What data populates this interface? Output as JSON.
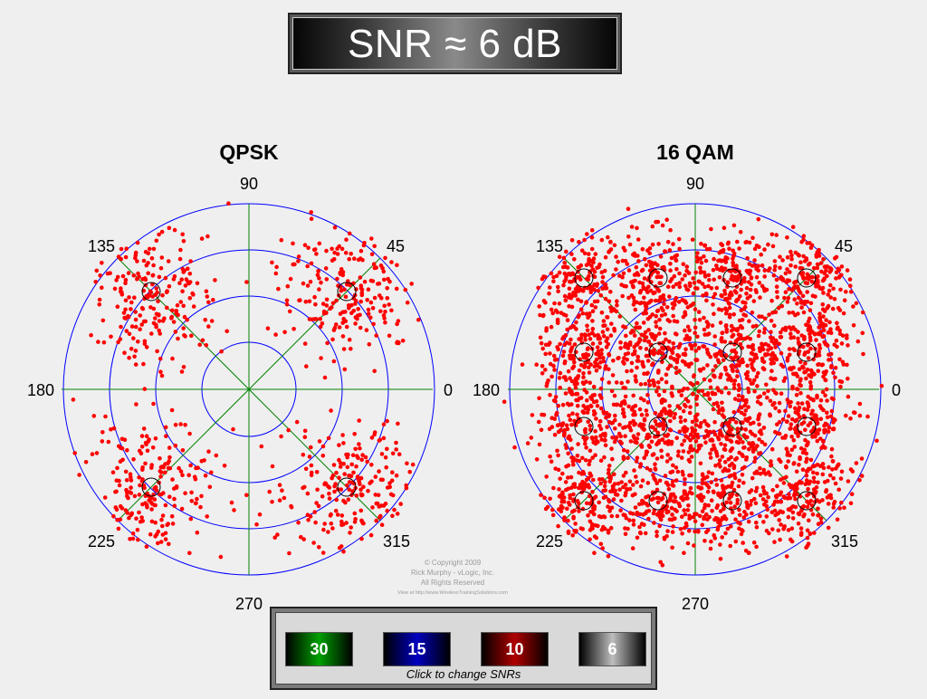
{
  "title": "SNR  ≈ 6 dB",
  "plots": [
    {
      "id": "qpsk",
      "title": "QPSK",
      "constellation": [
        [
          1,
          1
        ],
        [
          -1,
          1
        ],
        [
          -1,
          -1
        ],
        [
          1,
          -1
        ]
      ]
    },
    {
      "id": "qam16",
      "title": "16 QAM",
      "constellation": [
        [
          -3,
          3
        ],
        [
          -1,
          3
        ],
        [
          1,
          3
        ],
        [
          3,
          3
        ],
        [
          -3,
          1
        ],
        [
          -1,
          1
        ],
        [
          1,
          1
        ],
        [
          3,
          1
        ],
        [
          -3,
          -1
        ],
        [
          -1,
          -1
        ],
        [
          1,
          -1
        ],
        [
          3,
          -1
        ],
        [
          -3,
          -3
        ],
        [
          -1,
          -3
        ],
        [
          1,
          -3
        ],
        [
          3,
          -3
        ]
      ]
    }
  ],
  "axis_labels": {
    "a0": "0",
    "a45": "45",
    "a90": "90",
    "a135": "135",
    "a180": "180",
    "a225": "225",
    "a270": "270",
    "a315": "315"
  },
  "copyright": [
    "© Copyright 2009",
    "Rick Murphy - vLogic, Inc.",
    "All Rights Reserved",
    "View at http://www.WirelessTrainingSolutions.com"
  ],
  "buttons": [
    {
      "label": "30",
      "color": "#00a000"
    },
    {
      "label": "15",
      "color": "#0000c0"
    },
    {
      "label": "10",
      "color": "#b00000"
    },
    {
      "label": "6",
      "color": "#bdbdbd"
    }
  ],
  "hint": "Click to change SNRs",
  "colors": {
    "points": "#ff0000",
    "rings": "#0000ff",
    "axes": "#008000",
    "markers": "#000000"
  }
}
